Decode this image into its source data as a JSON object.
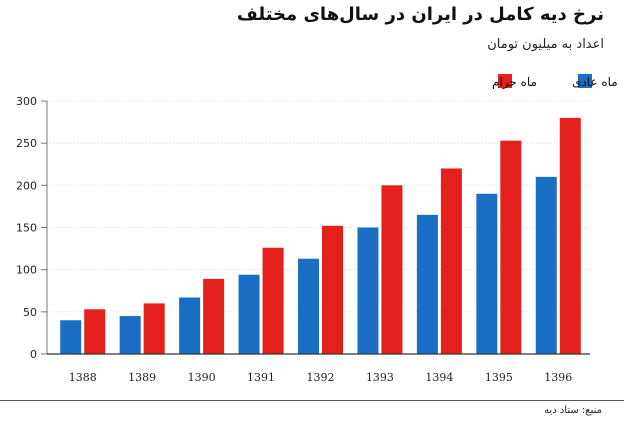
{
  "header": {
    "title": "نرخ دیه کامل در ایران در سال‌های مختلف",
    "subtitle": "اعداد به میلیون تومان"
  },
  "footer": {
    "source": "منبع: ستاد دیه"
  },
  "colors": {
    "normal": "#1a6fc4",
    "haram": "#e3201b",
    "grid": "#dddddd",
    "axis": "#333333"
  },
  "chart_data": {
    "type": "bar",
    "title": "نرخ دیه کامل در ایران در سال‌های مختلف",
    "subtitle": "اعداد به میلیون تومان",
    "xlabel": "",
    "ylabel": "",
    "categories": [
      "1388",
      "1389",
      "1390",
      "1391",
      "1392",
      "1393",
      "1394",
      "1395",
      "1396"
    ],
    "series": [
      {
        "name": "ماه عادی",
        "color": "#1a6fc4",
        "values": [
          40,
          45,
          67,
          94,
          113,
          150,
          165,
          190,
          210
        ]
      },
      {
        "name": "ماه حرام",
        "color": "#e3201b",
        "values": [
          53,
          60,
          89,
          126,
          152,
          200,
          220,
          253,
          280
        ]
      }
    ],
    "yticks": [
      0,
      50,
      100,
      150,
      200,
      250,
      300
    ],
    "ylim": [
      0,
      300
    ],
    "grid": true,
    "legend_position": "top-right"
  }
}
